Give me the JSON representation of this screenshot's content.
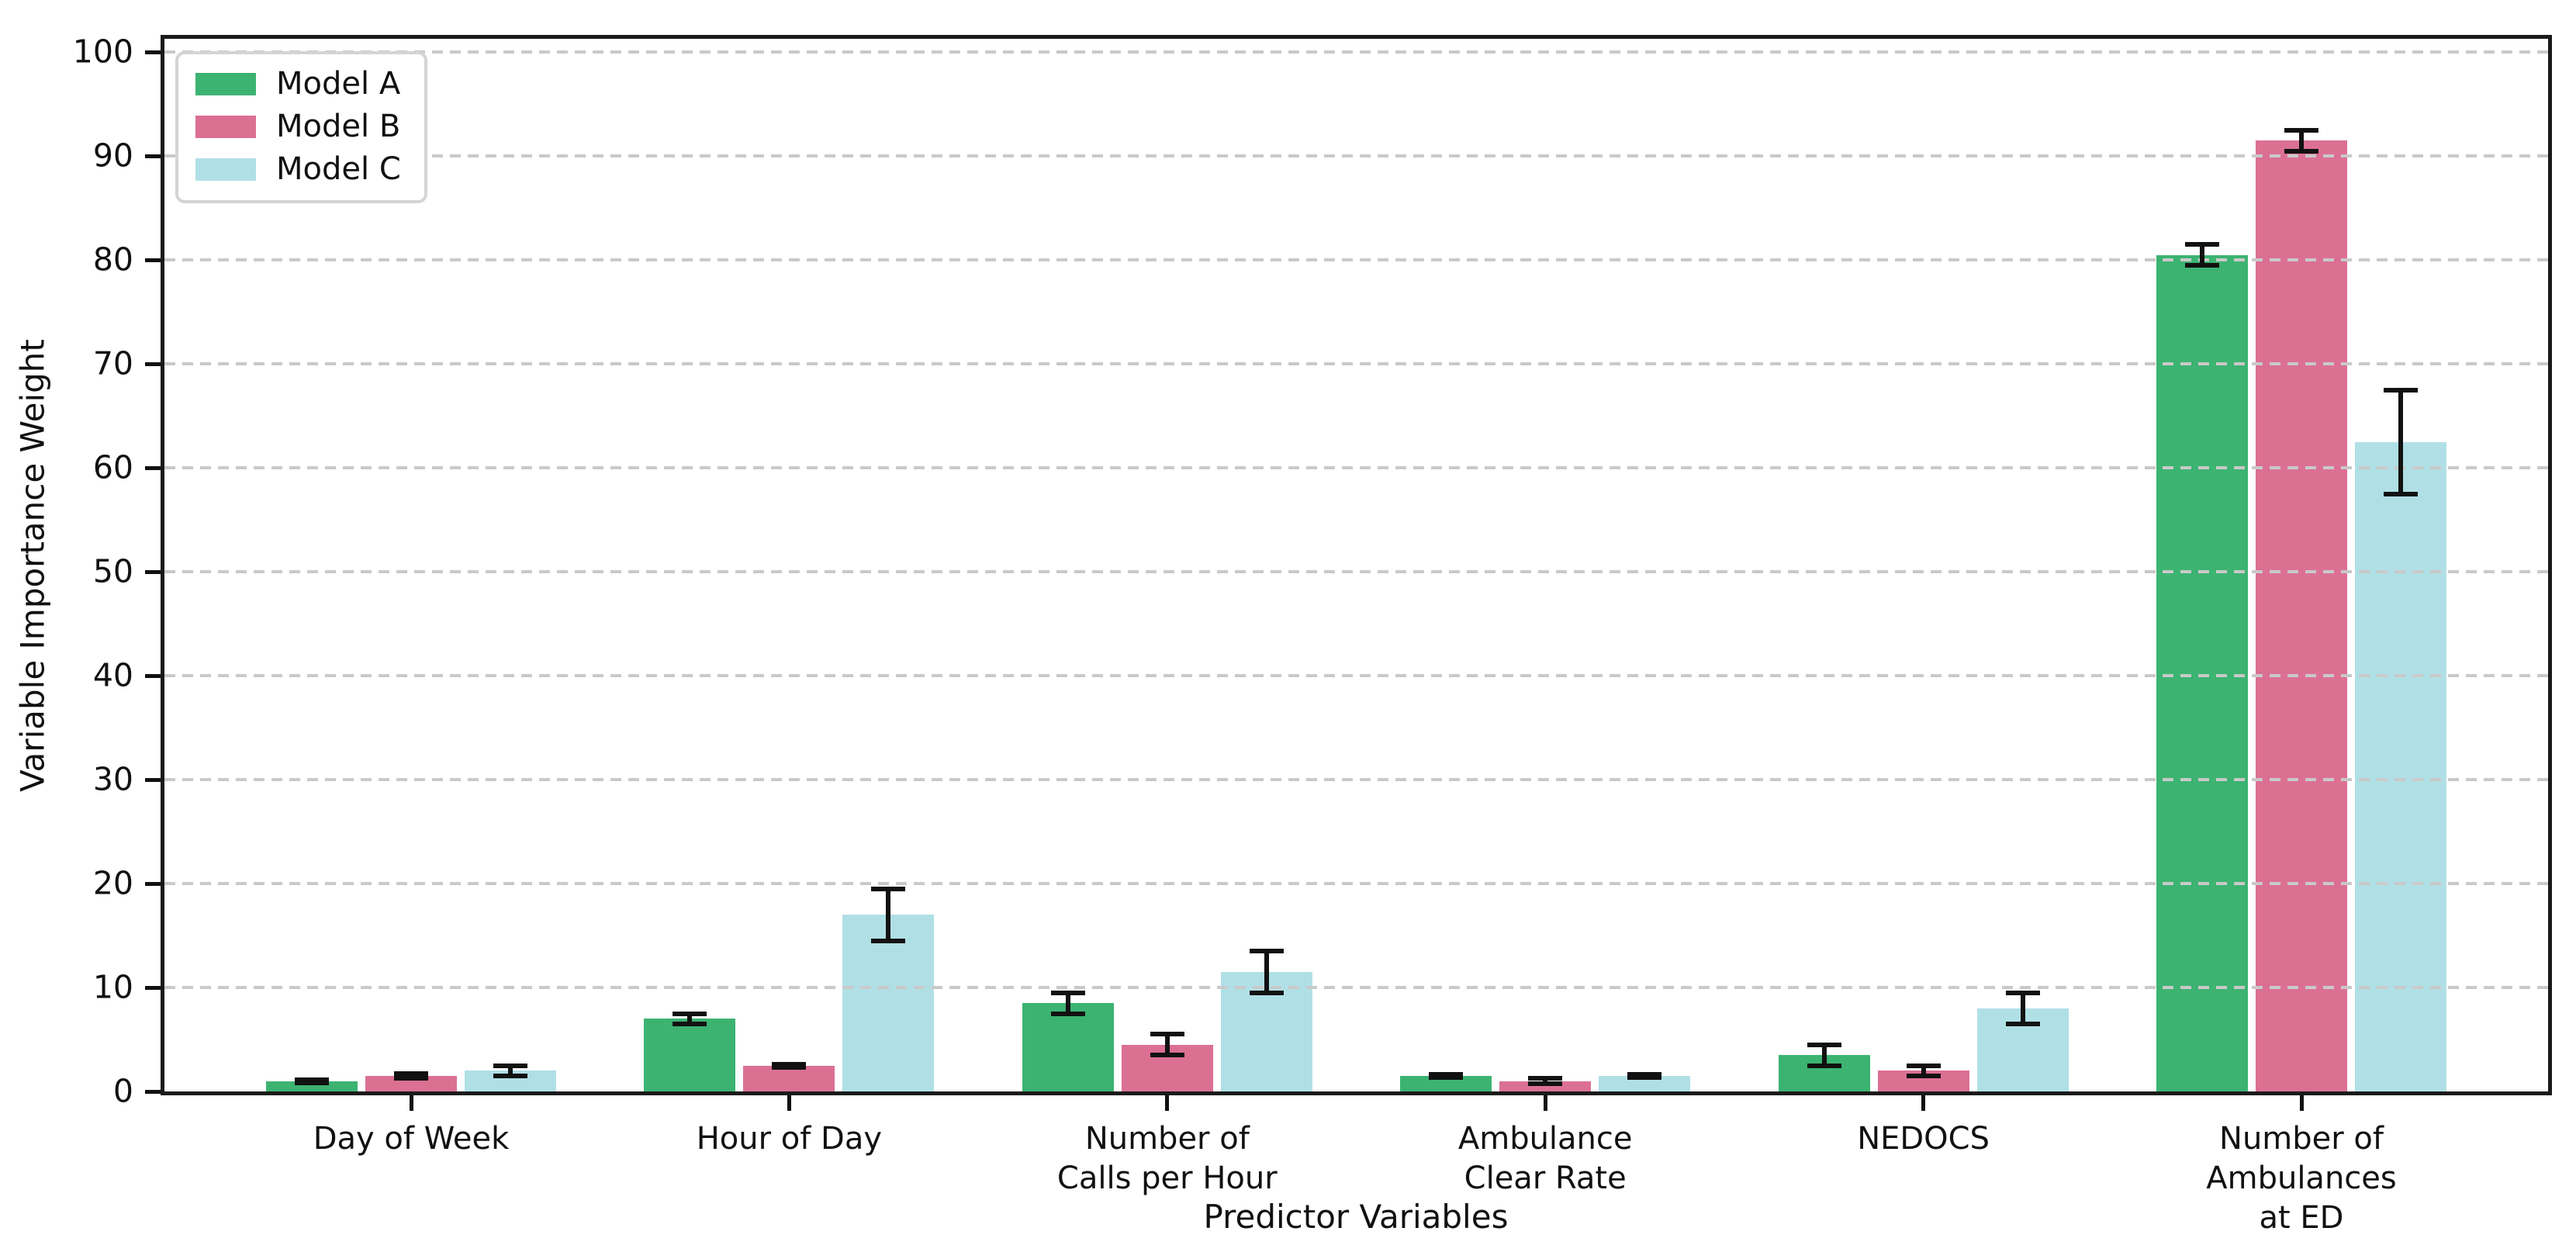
{
  "chart_data": {
    "type": "bar",
    "title": "",
    "xlabel": "Predictor Variables",
    "ylabel": "Variable Importance Weight",
    "ylim": [
      0,
      100
    ],
    "yticks": [
      0,
      10,
      20,
      30,
      40,
      50,
      60,
      70,
      80,
      90,
      100
    ],
    "grid": {
      "axis": "y",
      "style": "dashed",
      "color": "#c9c9c9",
      "above_bars": true
    },
    "legend": {
      "position": "upper left",
      "entries": [
        "Model A",
        "Model B",
        "Model C"
      ]
    },
    "categories": [
      "Day of Week",
      "Hour of Day",
      "Number of\nCalls per Hour",
      "Ambulance\nClear Rate",
      "NEDOCS",
      "Number of\nAmbulances\nat ED"
    ],
    "series": [
      {
        "name": "Model A",
        "color": "#3CB371",
        "values": [
          1.0,
          7.0,
          8.5,
          1.5,
          3.5,
          80.5
        ],
        "errors": [
          0.15,
          0.5,
          1.0,
          0.15,
          1.0,
          1.0
        ]
      },
      {
        "name": "Model B",
        "color": "#DB7093",
        "values": [
          1.5,
          2.5,
          4.5,
          1.0,
          2.0,
          91.5
        ],
        "errors": [
          0.2,
          0.15,
          1.0,
          0.25,
          0.5,
          1.0
        ]
      },
      {
        "name": "Model C",
        "color": "#B0E0E6",
        "values": [
          2.0,
          17.0,
          11.5,
          1.5,
          8.0,
          62.5
        ],
        "errors": [
          0.5,
          2.5,
          2.0,
          0.15,
          1.5,
          5.0
        ]
      }
    ],
    "error_bar_color": "#111111",
    "axis_color": "#111111",
    "background": "#ffffff"
  }
}
